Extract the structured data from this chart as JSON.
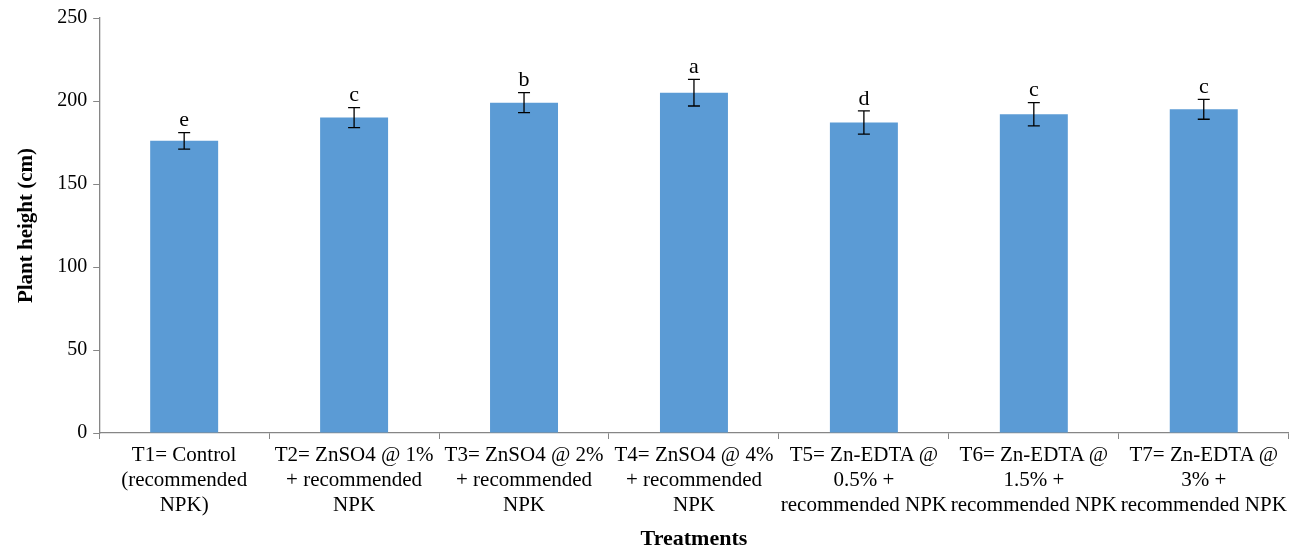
{
  "chart_data": {
    "type": "bar",
    "xlabel": "Treatments",
    "ylabel": "Plant height (cm)",
    "categories": [
      "T1= Control (recommended NPK)",
      "T2= ZnSO4 @ 1% + recommended NPK",
      "T3= ZnSO4 @ 2% + recommended NPK",
      "T4= ZnSO4 @ 4% + recommended NPK",
      "T5= Zn-EDTA @ 0.5% + recommended NPK",
      "T6= Zn-EDTA @ 1.5% + recommended NPK",
      "T7= Zn-EDTA @ 3% + recommended NPK"
    ],
    "values": [
      176,
      190,
      199,
      205,
      187,
      192,
      195
    ],
    "errors": [
      5,
      6,
      6,
      8,
      7,
      7,
      6
    ],
    "color": "#5b9bd5",
    "ylim": [
      0,
      250
    ],
    "yticks": [
      0,
      50,
      100,
      150,
      200,
      250
    ],
    "grid": false,
    "legend": false,
    "annotations": [
      {
        "text": "e",
        "x": "T1= Control (recommended NPK)",
        "y": 181
      },
      {
        "text": "c",
        "x": "T2= ZnSO4 @ 1% + recommended NPK",
        "y": 196
      },
      {
        "text": "b",
        "x": "T3= ZnSO4 @ 2% + recommended NPK",
        "y": 205
      },
      {
        "text": "a",
        "x": "T4= ZnSO4 @ 4% + recommended NPK",
        "y": 213
      },
      {
        "text": "d",
        "x": "T5= Zn-EDTA @ 0.5% + recommended NPK",
        "y": 194
      },
      {
        "text": "c",
        "x": "T6= Zn-EDTA @ 1.5% + recommended NPK",
        "y": 199
      },
      {
        "text": "c",
        "x": "T7= Zn-EDTA @ 3% + recommended NPK",
        "y": 201
      }
    ]
  }
}
